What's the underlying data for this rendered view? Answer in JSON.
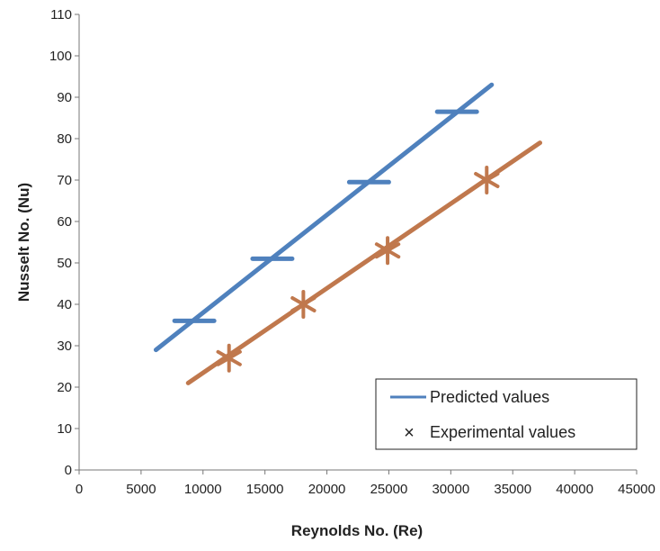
{
  "chart_data": {
    "type": "line",
    "xlabel": "Reynolds No. (Re)",
    "ylabel": "Nusselt No. (Nu)",
    "xlim": [
      0,
      45000
    ],
    "ylim": [
      0,
      110
    ],
    "x_ticks": [
      "0",
      "5000",
      "10000",
      "15000",
      "20000",
      "25000",
      "30000",
      "35000",
      "40000",
      "45000"
    ],
    "y_ticks": [
      "0",
      "10",
      "20",
      "30",
      "40",
      "50",
      "60",
      "70",
      "80",
      "90",
      "100",
      "110"
    ],
    "grid": false,
    "legend": "bottom-right",
    "series": [
      {
        "name": "Predicted values",
        "color": "#4f81bd",
        "line": [
          [
            6200,
            29
          ],
          [
            33300,
            93
          ]
        ],
        "markers": [
          [
            9300,
            36
          ],
          [
            15600,
            51
          ],
          [
            23400,
            69.5
          ],
          [
            30500,
            86.5
          ]
        ]
      },
      {
        "name": "Experimental values",
        "color": "#c0504d",
        "line_color": "#c0784d",
        "line": [
          [
            8800,
            21
          ],
          [
            37200,
            79
          ]
        ],
        "markers": [
          [
            12100,
            27
          ],
          [
            18100,
            40
          ],
          [
            24900,
            53
          ],
          [
            32900,
            70
          ]
        ]
      }
    ]
  }
}
